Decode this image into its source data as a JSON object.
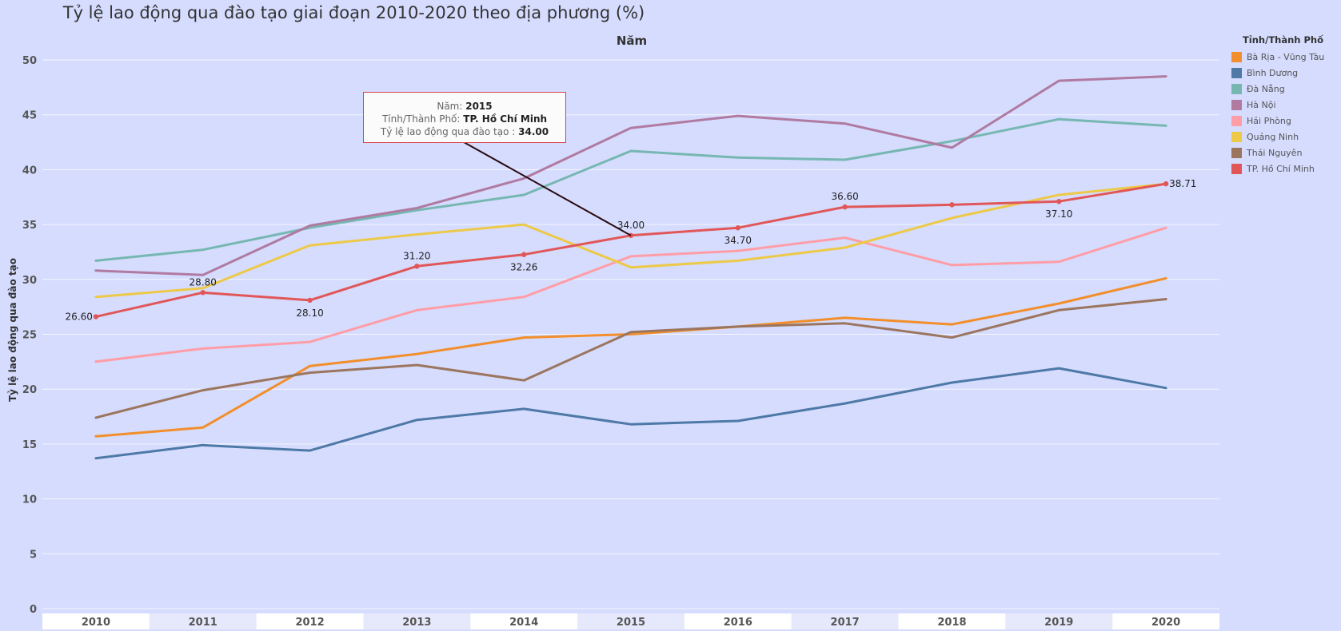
{
  "chart_data": {
    "type": "line",
    "title": "Tỷ lệ lao động qua đào tạo giai đoạn 2010-2020 theo địa phương (%)",
    "subtitle": "Năm",
    "xlabel": "",
    "ylabel": "Tỷ lệ lao động qua đào tạo",
    "categories": [
      "2010",
      "2011",
      "2012",
      "2013",
      "2014",
      "2015",
      "2016",
      "2017",
      "2018",
      "2019",
      "2020"
    ],
    "ylim": [
      0,
      50
    ],
    "yticks": [
      0,
      5,
      10,
      15,
      20,
      25,
      30,
      35,
      40,
      45,
      50
    ],
    "grid": true,
    "legend": {
      "title": "Tỉnh/Thành Phố",
      "placement": "right"
    },
    "series": [
      {
        "name": "Bà Rịa - Vũng Tàu",
        "color": "#f28e2b",
        "values": [
          15.7,
          16.5,
          22.1,
          23.2,
          24.7,
          25.0,
          25.7,
          26.5,
          25.9,
          27.8,
          30.1
        ]
      },
      {
        "name": "Bình Dương",
        "color": "#4e79a7",
        "values": [
          13.7,
          14.9,
          14.4,
          17.2,
          18.2,
          16.8,
          17.1,
          18.7,
          20.6,
          21.9,
          20.1
        ]
      },
      {
        "name": "Đà Nẵng",
        "color": "#76b7b2",
        "values": [
          31.7,
          32.7,
          34.7,
          36.3,
          37.7,
          41.7,
          41.1,
          40.9,
          42.6,
          44.6,
          44.0
        ]
      },
      {
        "name": "Hà Nội",
        "color": "#b07aa1",
        "values": [
          30.8,
          30.4,
          34.9,
          36.5,
          39.2,
          43.8,
          44.9,
          44.2,
          42.0,
          48.1,
          48.5
        ]
      },
      {
        "name": "Hải Phòng",
        "color": "#ff9da7",
        "values": [
          22.5,
          23.7,
          24.3,
          27.2,
          28.4,
          32.1,
          32.6,
          33.8,
          31.3,
          31.6,
          34.7
        ]
      },
      {
        "name": "Quảng Ninh",
        "color": "#edc948",
        "values": [
          28.4,
          29.2,
          33.1,
          34.1,
          35.0,
          31.1,
          31.7,
          32.9,
          35.6,
          37.7,
          38.7
        ]
      },
      {
        "name": "Thái Nguyên",
        "color": "#9c755f",
        "values": [
          17.4,
          19.9,
          21.5,
          22.2,
          20.8,
          25.2,
          25.7,
          26.0,
          24.7,
          27.2,
          28.2
        ]
      },
      {
        "name": "TP. Hồ Chí Minh",
        "color": "#e15759",
        "values": [
          26.6,
          28.8,
          28.1,
          31.2,
          32.26,
          34.0,
          34.7,
          36.6,
          36.8,
          37.1,
          38.71
        ],
        "markers": true
      }
    ],
    "data_labels": [
      {
        "text": "26.60",
        "index": 0,
        "pos": "left"
      },
      {
        "text": "28.80",
        "index": 1,
        "pos": "above"
      },
      {
        "text": "28.10",
        "index": 2,
        "pos": "below"
      },
      {
        "text": "31.20",
        "index": 3,
        "pos": "above"
      },
      {
        "text": "32.26",
        "index": 4,
        "pos": "below"
      },
      {
        "text": "34.00",
        "index": 5,
        "pos": "above"
      },
      {
        "text": "34.70",
        "index": 6,
        "pos": "below"
      },
      {
        "text": "36.60",
        "index": 7,
        "pos": "above"
      },
      {
        "text": "37.10",
        "index": 9,
        "pos": "below"
      },
      {
        "text": "38.71",
        "index": 10,
        "pos": "right"
      }
    ],
    "tooltip": {
      "year_label": "Năm:",
      "year_value": "2015",
      "city_label": "Tỉnh/Thành Phố:",
      "city_value": "TP. Hồ Chí Minh",
      "rate_label": "Tỷ lệ lao động qua đào tạo :",
      "rate_value": "34.00",
      "target_index": 5
    }
  }
}
